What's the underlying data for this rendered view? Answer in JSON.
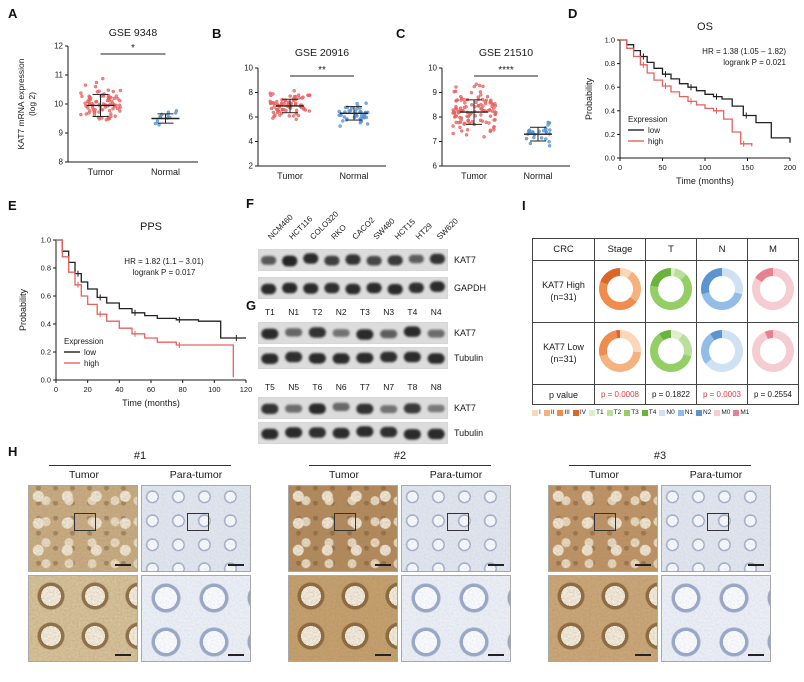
{
  "panel_labels": {
    "A": "A",
    "B": "B",
    "C": "C",
    "D": "D",
    "E": "E",
    "F": "F",
    "G": "G",
    "H": "H",
    "I": "I"
  },
  "colors": {
    "tumor_dot": "#e8615f",
    "normal_dot": "#5591d2",
    "km_low": "#222222",
    "km_high": "#e8615f",
    "significant_p": "#e23b3b"
  },
  "chart_data": [
    {
      "panel": "A",
      "type": "scatter",
      "title": "GSE 9348",
      "ylabel_lines": [
        "KAT7 mRNA expression",
        "(log 2)"
      ],
      "ylim": [
        8,
        12
      ],
      "yticks": [
        8,
        9,
        10,
        11,
        12
      ],
      "significance": "*",
      "categories": [
        "Tumor",
        "Normal"
      ],
      "groups": [
        {
          "name": "Tumor",
          "color": "#e8615f",
          "n": 82,
          "mean": 9.95,
          "sd": 0.38,
          "min": 8.75,
          "max": 11.1,
          "spread": 40
        },
        {
          "name": "Normal",
          "color": "#5591d2",
          "n": 12,
          "mean": 9.5,
          "sd": 0.16,
          "min": 9.15,
          "max": 9.85,
          "spread": 22
        }
      ]
    },
    {
      "panel": "B",
      "type": "scatter",
      "title": "GSE 20916",
      "ylim": [
        2,
        10
      ],
      "yticks": [
        2,
        4,
        6,
        8,
        10
      ],
      "significance": "**",
      "categories": [
        "Tumor",
        "Normal"
      ],
      "groups": [
        {
          "name": "Tumor",
          "color": "#e8615f",
          "n": 75,
          "mean": 6.9,
          "sd": 0.55,
          "min": 5.6,
          "max": 8.3,
          "spread": 40
        },
        {
          "name": "Normal",
          "color": "#5591d2",
          "n": 42,
          "mean": 6.3,
          "sd": 0.55,
          "min": 4.9,
          "max": 7.6,
          "spread": 30
        }
      ]
    },
    {
      "panel": "C",
      "type": "scatter",
      "title": "GSE 21510",
      "ylim": [
        6,
        10
      ],
      "yticks": [
        6,
        7,
        8,
        9,
        10
      ],
      "significance": "****",
      "categories": [
        "Tumor",
        "Normal"
      ],
      "groups": [
        {
          "name": "Tumor",
          "color": "#e8615f",
          "n": 115,
          "mean": 8.2,
          "sd": 0.5,
          "min": 6.9,
          "max": 9.6,
          "spread": 44
        },
        {
          "name": "Normal",
          "color": "#5591d2",
          "n": 26,
          "mean": 7.3,
          "sd": 0.28,
          "min": 6.8,
          "max": 7.95,
          "spread": 24
        }
      ]
    },
    {
      "panel": "D",
      "type": "line",
      "title": "OS",
      "xlabel": "Time (months)",
      "ylabel": "Probability",
      "xlim": [
        0,
        200
      ],
      "ylim": [
        0,
        1
      ],
      "xticks": [
        0,
        50,
        100,
        150,
        200
      ],
      "yticks": [
        0,
        0.2,
        0.4,
        0.6,
        0.8,
        1.0
      ],
      "annotation": [
        "HR = 1.38 (1.05 – 1.82)",
        "logrank P = 0.021"
      ],
      "legend_title": "Expression",
      "series": [
        {
          "name": "low",
          "color": "#222222",
          "x": [
            0,
            8,
            16,
            24,
            32,
            40,
            50,
            60,
            70,
            80,
            90,
            100,
            110,
            120,
            132,
            145,
            160,
            178,
            200
          ],
          "y": [
            1.0,
            0.96,
            0.91,
            0.86,
            0.81,
            0.76,
            0.71,
            0.67,
            0.63,
            0.6,
            0.57,
            0.54,
            0.52,
            0.5,
            0.44,
            0.36,
            0.3,
            0.17,
            0.13
          ]
        },
        {
          "name": "high",
          "color": "#e8615f",
          "x": [
            0,
            8,
            16,
            24,
            32,
            40,
            50,
            60,
            70,
            80,
            90,
            100,
            110,
            122,
            132,
            142,
            155
          ],
          "y": [
            1.0,
            0.93,
            0.86,
            0.79,
            0.72,
            0.66,
            0.61,
            0.56,
            0.52,
            0.48,
            0.45,
            0.42,
            0.4,
            0.33,
            0.22,
            0.12,
            0.1
          ]
        }
      ]
    },
    {
      "panel": "E",
      "type": "line",
      "title": "PPS",
      "xlabel": "Time (months)",
      "ylabel": "Probability",
      "xlim": [
        0,
        120
      ],
      "ylim": [
        0,
        1
      ],
      "xticks": [
        0,
        20,
        40,
        60,
        80,
        100,
        120
      ],
      "yticks": [
        0,
        0.2,
        0.4,
        0.6,
        0.8,
        1.0
      ],
      "annotation": [
        "HR = 1.82 (1.1 – 3.01)",
        "logrank P = 0.017"
      ],
      "legend_title": "Expression",
      "series": [
        {
          "name": "low",
          "color": "#222222",
          "x": [
            0,
            4,
            8,
            12,
            16,
            20,
            26,
            32,
            40,
            48,
            56,
            64,
            76,
            90,
            104,
            112,
            120
          ],
          "y": [
            1.0,
            0.92,
            0.84,
            0.76,
            0.7,
            0.65,
            0.59,
            0.55,
            0.51,
            0.48,
            0.46,
            0.44,
            0.43,
            0.42,
            0.3,
            0.3,
            0.3
          ]
        },
        {
          "name": "high",
          "color": "#e8615f",
          "x": [
            0,
            4,
            8,
            12,
            16,
            20,
            26,
            32,
            40,
            48,
            56,
            64,
            76,
            90,
            100,
            112
          ],
          "y": [
            1.0,
            0.88,
            0.77,
            0.68,
            0.6,
            0.54,
            0.47,
            0.42,
            0.37,
            0.33,
            0.3,
            0.27,
            0.25,
            0.25,
            0.25,
            0.02
          ]
        }
      ]
    },
    {
      "panel": "I",
      "type": "pie",
      "title": "CRC cohort composition (donut charts)",
      "rows": [
        "KAT7 High (n=31)",
        "KAT7 Low (n=31)"
      ],
      "columns": [
        "Stage",
        "T",
        "N",
        "M"
      ],
      "values": {
        "high": {
          "Stage": [
            3,
            8,
            14,
            6
          ],
          "T": [
            1,
            3,
            20,
            7
          ],
          "N": [
            9,
            13,
            9
          ],
          "M": [
            26,
            5
          ]
        },
        "low": {
          "Stage": [
            8,
            14,
            8,
            1
          ],
          "T": [
            3,
            6,
            19,
            3
          ],
          "N": [
            20,
            8,
            3
          ],
          "M": [
            29,
            2
          ]
        }
      }
    }
  ],
  "blots": {
    "F": {
      "lanes": [
        "NCM460",
        "HCT116",
        "COLO320",
        "RKO",
        "CACO2",
        "SW480",
        "HCT15",
        "HT29",
        "SW620"
      ],
      "strips": [
        {
          "label": "KAT7",
          "intensities": [
            0.55,
            0.95,
            0.9,
            0.75,
            0.85,
            0.7,
            0.8,
            0.5,
            0.85
          ]
        },
        {
          "label": "GAPDH",
          "intensities": [
            0.9,
            0.92,
            0.9,
            0.88,
            0.9,
            0.9,
            0.9,
            0.88,
            0.9
          ]
        }
      ]
    },
    "G": [
      {
        "lanes": [
          "T1",
          "N1",
          "T2",
          "N2",
          "T3",
          "N3",
          "T4",
          "N4"
        ],
        "strips": [
          {
            "label": "KAT7",
            "intensities": [
              0.9,
              0.45,
              0.85,
              0.35,
              0.9,
              0.5,
              0.9,
              0.4
            ]
          },
          {
            "label": "Tubulin",
            "intensities": [
              0.9,
              0.88,
              0.9,
              0.9,
              0.9,
              0.88,
              0.9,
              0.9
            ]
          }
        ]
      },
      {
        "lanes": [
          "T5",
          "N5",
          "T6",
          "N6",
          "T7",
          "N7",
          "T8",
          "N8"
        ],
        "strips": [
          {
            "label": "KAT7",
            "intensities": [
              0.85,
              0.4,
              0.9,
              0.45,
              0.85,
              0.35,
              0.8,
              0.3
            ]
          },
          {
            "label": "Tubulin",
            "intensities": [
              0.9,
              0.9,
              0.88,
              0.9,
              0.9,
              0.88,
              0.9,
              0.9
            ]
          }
        ]
      }
    ]
  },
  "ihc": {
    "groups": [
      {
        "label": "#1",
        "columns": [
          "Tumor",
          "Para-tumor"
        ]
      },
      {
        "label": "#2",
        "columns": [
          "Tumor",
          "Para-tumor"
        ]
      },
      {
        "label": "#3",
        "columns": [
          "Tumor",
          "Para-tumor"
        ]
      }
    ]
  },
  "cohort_table": {
    "header": [
      "CRC",
      "Stage",
      "T",
      "N",
      "M"
    ],
    "row_labels": [
      "KAT7 High\n(n=31)",
      "KAT7 Low\n(n=31)"
    ],
    "p_row_label": "p value",
    "p_values": [
      {
        "text": "p = 0.0008",
        "highlight": true
      },
      {
        "text": "p = 0.1822",
        "highlight": false
      },
      {
        "text": "p = 0.0003",
        "highlight": true
      },
      {
        "text": "p = 0.2554",
        "highlight": false
      }
    ],
    "categories": {
      "Stage": {
        "labels": [
          "I",
          "II",
          "III",
          "IV"
        ],
        "colors": [
          "#fad7b8",
          "#f6b27e",
          "#ef8c4e",
          "#df6426"
        ]
      },
      "T": {
        "labels": [
          "T1",
          "T2",
          "T3",
          "T4"
        ],
        "colors": [
          "#ddeec9",
          "#b9e09a",
          "#93cf65",
          "#6ab33c"
        ]
      },
      "N": {
        "labels": [
          "N0",
          "N1",
          "N2"
        ],
        "colors": [
          "#cfe2f4",
          "#92bde6",
          "#5b94d3"
        ]
      },
      "M": {
        "labels": [
          "M0",
          "M1"
        ],
        "colors": [
          "#f6ccd3",
          "#e8808f"
        ]
      }
    }
  }
}
